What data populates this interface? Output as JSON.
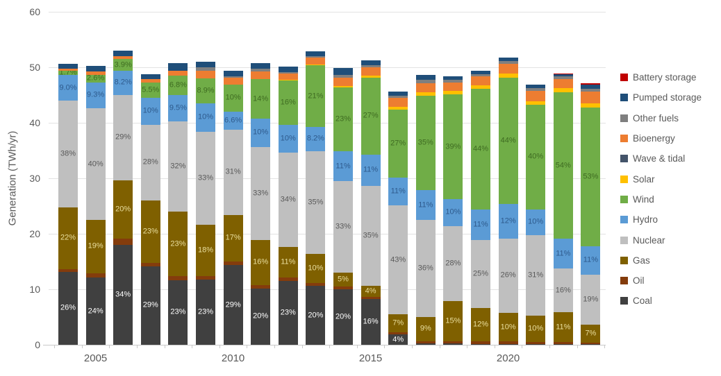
{
  "chart_data": {
    "type": "bar",
    "variant": "stacked",
    "title": "",
    "xlabel": "",
    "ylabel": "Generation (TWh/yr)",
    "ylim": [
      0,
      60
    ],
    "yticks": [
      0,
      10,
      20,
      30,
      40,
      50,
      60
    ],
    "grid": true,
    "legend_position": "right",
    "years": [
      2004,
      2005,
      2006,
      2007,
      2008,
      2009,
      2010,
      2011,
      2012,
      2013,
      2014,
      2015,
      2016,
      2017,
      2018,
      2019,
      2020,
      2021,
      2022,
      2023
    ],
    "xtick_labels": [
      {
        "label": "2005",
        "year_index": 1
      },
      {
        "label": "2010",
        "year_index": 6
      },
      {
        "label": "2015",
        "year_index": 11
      },
      {
        "label": "2020",
        "year_index": 16
      }
    ],
    "totals_twh": [
      50.6,
      50.3,
      53.0,
      48.8,
      50.7,
      51.0,
      49.4,
      50.8,
      50.1,
      52.9,
      49.9,
      51.3,
      45.6,
      48.6,
      48.4,
      49.4,
      51.7,
      46.9,
      48.9,
      47.1
    ],
    "stack_order_note": "series listed bottom-to-top of stack; pct = percent of that year's total generation",
    "series": [
      {
        "name": "Coal",
        "color": "#404040",
        "label_color": "#ffffff",
        "pct": [
          26,
          24,
          34,
          29,
          23,
          23,
          29,
          20,
          23,
          20,
          20,
          16,
          4,
          0.5,
          0.4,
          0.3,
          0.3,
          0.3,
          0.3,
          0.2
        ],
        "labels": [
          "26%",
          "24%",
          "34%",
          "29%",
          "23%",
          "23%",
          "29%",
          "20%",
          "23%",
          "20%",
          "20%",
          "16%",
          "4%",
          null,
          null,
          null,
          null,
          null,
          null,
          null
        ]
      },
      {
        "name": "Oil",
        "color": "#843c0c",
        "label_color": "#ffffff",
        "pct": [
          1.0,
          1.7,
          2.0,
          1.3,
          1.3,
          1.3,
          1.4,
          1.2,
          1.2,
          1.0,
          1.0,
          0.8,
          1.0,
          0.8,
          0.8,
          1.0,
          0.8,
          0.8,
          0.7,
          0.6
        ],
        "labels": [
          null,
          null,
          null,
          null,
          null,
          null,
          null,
          null,
          null,
          null,
          null,
          null,
          null,
          null,
          null,
          null,
          null,
          null,
          null,
          null
        ]
      },
      {
        "name": "Gas",
        "color": "#7f6000",
        "label_color": "#eadf9f",
        "pct": [
          22,
          19,
          20,
          23,
          23,
          18,
          17,
          16,
          11,
          10,
          5,
          4,
          7,
          9,
          15,
          12,
          10,
          10,
          11,
          7
        ],
        "labels": [
          "22%",
          "19%",
          "20%",
          "23%",
          "23%",
          "18%",
          "17%",
          "16%",
          "11%",
          "10%",
          "5%",
          "4%",
          "7%",
          "9%",
          "15%",
          "12%",
          "10%",
          "10%",
          "11%",
          "7%"
        ]
      },
      {
        "name": "Nuclear",
        "color": "#bfbfbf",
        "label_color": "#595959",
        "pct": [
          38,
          40,
          29,
          28,
          32,
          33,
          31,
          33,
          34,
          35,
          33,
          35,
          43,
          36,
          28,
          25,
          26,
          31,
          16,
          19
        ],
        "labels": [
          "38%",
          "40%",
          "29%",
          "28%",
          "32%",
          "33%",
          "31%",
          "33%",
          "34%",
          "35%",
          "33%",
          "35%",
          "43%",
          "36%",
          "28%",
          "25%",
          "26%",
          "31%",
          "16%",
          "19%"
        ]
      },
      {
        "name": "Hydro",
        "color": "#5b9bd5",
        "label_color": "#2e5a8c",
        "pct": [
          9.0,
          9.3,
          8.2,
          10,
          9.5,
          10,
          6.6,
          10,
          10,
          8.2,
          11,
          11,
          11,
          11,
          10,
          11,
          12,
          10,
          11,
          11
        ],
        "labels": [
          "9.0%",
          "9.3%",
          "8.2%",
          "10%",
          "9.5%",
          "10%",
          "6.6%",
          "10%",
          "10%",
          "8.2%",
          "11%",
          "11%",
          "11%",
          "11%",
          "10%",
          "11%",
          "12%",
          "10%",
          "11%",
          "11%"
        ]
      },
      {
        "name": "Wind",
        "color": "#70ad47",
        "label_color": "#3e6b21",
        "pct": [
          1.7,
          2.6,
          3.9,
          5.5,
          6.8,
          8.9,
          10,
          14,
          16,
          21,
          23,
          27,
          27,
          35,
          39,
          44,
          44,
          40,
          54,
          53
        ],
        "labels": [
          "1.7%",
          "2.6%",
          "3.9%",
          "5.5%",
          "6.8%",
          "8.9%",
          "10%",
          "14%",
          "16%",
          "21%",
          "23%",
          "27%",
          "27%",
          "35%",
          "39%",
          "44%",
          "44%",
          "40%",
          "54%",
          "53%"
        ]
      },
      {
        "name": "Solar",
        "color": "#ffc000",
        "label_color": "#7f6000",
        "pct": [
          0,
          0,
          0,
          0,
          0,
          0,
          0,
          0,
          0.2,
          0.3,
          0.5,
          0.7,
          1.0,
          1.2,
          1.3,
          1.3,
          1.4,
          1.5,
          1.5,
          1.5
        ],
        "labels": [
          null,
          null,
          null,
          null,
          null,
          null,
          null,
          null,
          null,
          null,
          null,
          null,
          null,
          null,
          null,
          null,
          null,
          null,
          null,
          null
        ]
      },
      {
        "name": "Wave & tidal",
        "color": "#44546a",
        "label_color": "#ffffff",
        "pct": [
          0,
          0,
          0,
          0,
          0,
          0,
          0,
          0,
          0,
          0,
          0,
          0,
          0,
          0,
          0,
          0,
          0,
          0,
          0,
          0
        ],
        "labels": [
          null,
          null,
          null,
          null,
          null,
          null,
          null,
          null,
          null,
          null,
          null,
          null,
          null,
          null,
          null,
          null,
          null,
          null,
          null,
          null
        ]
      },
      {
        "name": "Bioenergy",
        "color": "#ed7d31",
        "label_color": "#833c00",
        "pct": [
          0.7,
          1.2,
          1.0,
          1.2,
          1.7,
          2.6,
          2.3,
          2.8,
          2.2,
          2.3,
          3.0,
          3.0,
          3.5,
          3.5,
          3.2,
          3.2,
          3.5,
          4.0,
          3.5,
          4.5
        ],
        "labels": [
          null,
          null,
          null,
          null,
          null,
          null,
          null,
          null,
          null,
          null,
          null,
          null,
          null,
          null,
          null,
          null,
          null,
          null,
          null,
          null
        ]
      },
      {
        "name": "Other fuels",
        "color": "#7f7f7f",
        "label_color": "#ffffff",
        "pct": [
          0,
          0,
          0,
          0,
          0,
          1.2,
          0.7,
          1.0,
          0.4,
          0.4,
          1.0,
          0.8,
          1.0,
          1.2,
          1.0,
          1.0,
          0.8,
          1.0,
          0.8,
          1.0
        ],
        "labels": [
          null,
          null,
          null,
          null,
          null,
          null,
          null,
          null,
          null,
          null,
          null,
          null,
          null,
          null,
          null,
          null,
          null,
          null,
          null,
          null
        ]
      },
      {
        "name": "Pumped storage",
        "color": "#1f4e79",
        "label_color": "#ffffff",
        "pct": [
          1.6,
          2.2,
          1.9,
          2.0,
          2.7,
          2.0,
          2.0,
          2.0,
          2.0,
          1.8,
          2.5,
          1.7,
          1.5,
          1.8,
          1.3,
          1.2,
          1.2,
          1.4,
          1.0,
          1.8
        ],
        "labels": [
          null,
          null,
          null,
          null,
          null,
          null,
          null,
          null,
          null,
          null,
          null,
          null,
          null,
          null,
          null,
          null,
          null,
          null,
          null,
          null
        ]
      },
      {
        "name": "Battery storage",
        "color": "#c00000",
        "label_color": "#ffffff",
        "pct": [
          0,
          0,
          0,
          0,
          0,
          0,
          0,
          0,
          0,
          0,
          0,
          0,
          0,
          0,
          0,
          0,
          0,
          0,
          0.2,
          0.4
        ],
        "labels": [
          null,
          null,
          null,
          null,
          null,
          null,
          null,
          null,
          null,
          null,
          null,
          null,
          null,
          null,
          null,
          null,
          null,
          null,
          null,
          null
        ]
      }
    ],
    "legend": {
      "items": [
        {
          "label": "Battery storage",
          "color": "#c00000"
        },
        {
          "label": "Pumped storage",
          "color": "#1f4e79"
        },
        {
          "label": "Other fuels",
          "color": "#7f7f7f"
        },
        {
          "label": "Bioenergy",
          "color": "#ed7d31"
        },
        {
          "label": "Wave & tidal",
          "color": "#44546a"
        },
        {
          "label": "Solar",
          "color": "#ffc000"
        },
        {
          "label": "Wind",
          "color": "#70ad47"
        },
        {
          "label": "Hydro",
          "color": "#5b9bd5"
        },
        {
          "label": "Nuclear",
          "color": "#bfbfbf"
        },
        {
          "label": "Gas",
          "color": "#7f6000"
        },
        {
          "label": "Oil",
          "color": "#843c0c"
        },
        {
          "label": "Coal",
          "color": "#404040"
        }
      ]
    }
  }
}
